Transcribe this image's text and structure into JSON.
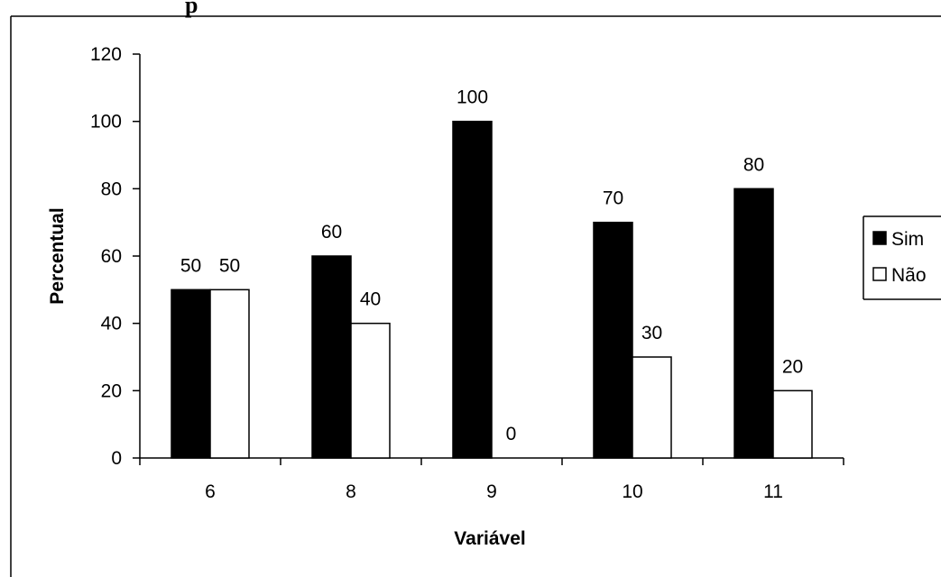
{
  "page": {
    "top_fragment": "p"
  },
  "chart_data": {
    "type": "bar",
    "categories": [
      "6",
      "8",
      "9",
      "10",
      "11"
    ],
    "series": [
      {
        "name": "Sim",
        "values": [
          50,
          60,
          100,
          70,
          80
        ],
        "color": "#000000"
      },
      {
        "name": "Não",
        "values": [
          50,
          40,
          0,
          30,
          20
        ],
        "color": "#ffffff"
      }
    ],
    "data_labels": {
      "Sim": [
        "50",
        "60",
        "100",
        "70",
        "80"
      ],
      "Não": [
        "50",
        "40",
        "0",
        "30",
        "20"
      ]
    },
    "title": "",
    "xlabel": "Variável",
    "ylabel": "Percentual",
    "ylim": [
      0,
      120
    ],
    "yticks": [
      "0",
      "20",
      "40",
      "60",
      "80",
      "100",
      "120"
    ],
    "grid": false,
    "legend": {
      "position": "right",
      "entries": [
        "Sim",
        "Não"
      ]
    }
  }
}
